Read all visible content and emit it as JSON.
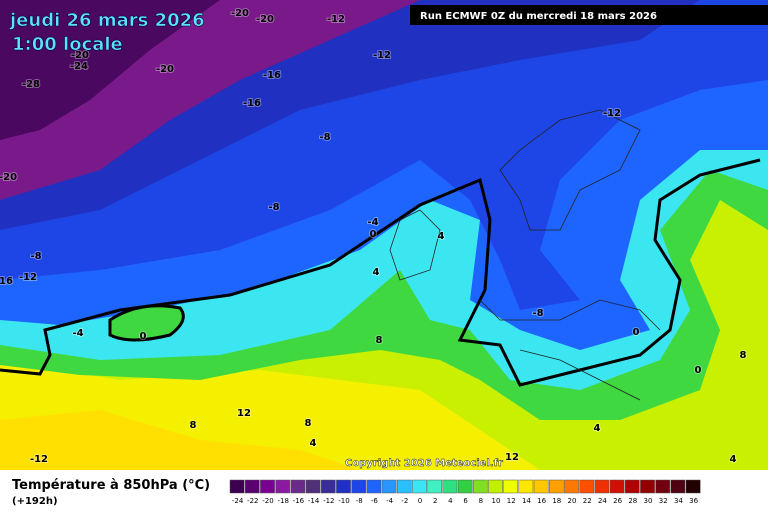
{
  "header": {
    "date": "jeudi 26 mars 2026",
    "time": "1:00 locale"
  },
  "run": "Run ECMWF 0Z du mercredi 18 mars 2026",
  "copyright": "Copyright 2026 Meteociel.fr",
  "footer": {
    "title": "Température à 850hPa (°C)",
    "lead": "(+192h)"
  },
  "contour_labels": [
    -20,
    -20,
    -12,
    -20,
    -24,
    -20,
    -28,
    -16,
    -12,
    -16,
    -12,
    -8,
    -20,
    -8,
    -4,
    0,
    4,
    -8,
    -12,
    16,
    4,
    -4,
    0,
    -8,
    0,
    8,
    0,
    8,
    12,
    8,
    8,
    4,
    4,
    -12,
    12,
    4
  ],
  "colorbar": {
    "ticks": [
      -24,
      -22,
      -20,
      -18,
      -16,
      -14,
      -12,
      -10,
      -8,
      -6,
      -4,
      -2,
      0,
      2,
      4,
      6,
      8,
      10,
      12,
      14,
      16,
      18,
      20,
      22,
      24,
      26,
      28,
      30,
      32,
      34,
      36
    ],
    "colors": [
      "#3c0050",
      "#5a0070",
      "#7a0090",
      "#8c1aa0",
      "#6a2a8a",
      "#503078",
      "#3a2c9a",
      "#2030c0",
      "#1e46e6",
      "#1e64ff",
      "#2896ff",
      "#28c0ff",
      "#3ce6f0",
      "#40f0c0",
      "#30e080",
      "#30d040",
      "#80e020",
      "#c0f000",
      "#f0ff00",
      "#ffe600",
      "#ffc800",
      "#ffa000",
      "#ff7800",
      "#ff5000",
      "#f03000",
      "#d01000",
      "#b00000",
      "#900000",
      "#700010",
      "#500010",
      "#200000"
    ]
  }
}
